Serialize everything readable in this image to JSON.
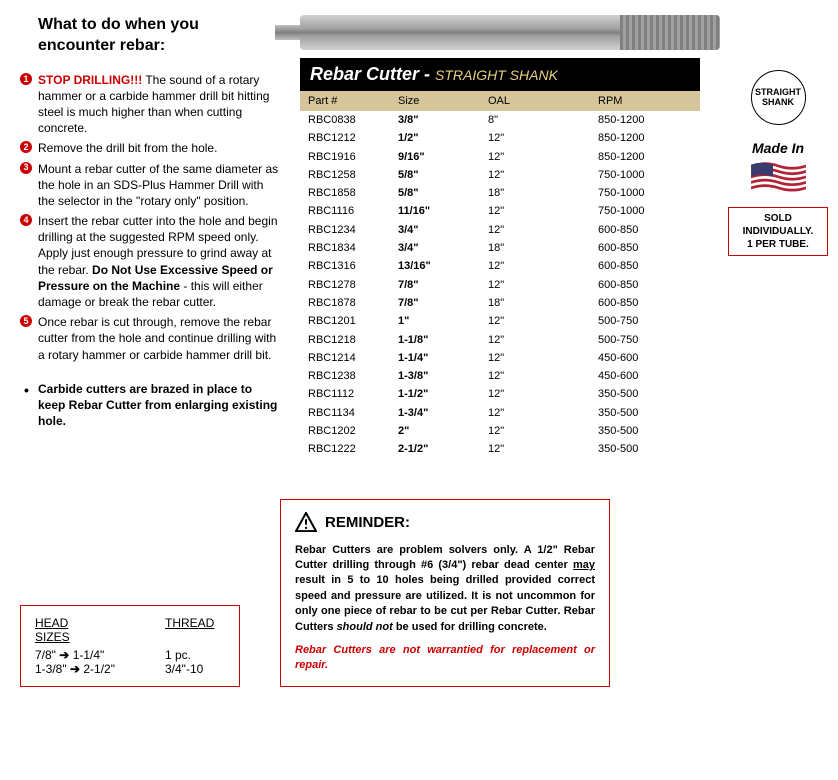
{
  "heading": "What to do when you encounter rebar:",
  "steps": [
    {
      "lead": "STOP DRILLING!!!",
      "rest": " The sound of a rotary hammer or a carbide hammer drill bit hitting steel is much higher than when cutting concrete."
    },
    {
      "lead": "",
      "rest": "Remove the drill bit from the hole."
    },
    {
      "lead": "",
      "rest": "Mount a rebar cutter of the same diameter as the hole in an SDS-Plus Hammer Drill with the selector in the \"rotary only\" position."
    },
    {
      "lead": "",
      "rest": "Insert the rebar cutter into the hole and begin drilling at the suggested RPM speed only. Apply just enough pressure to grind away at the rebar. ",
      "bold": "Do Not Use Excessive Speed or Pressure on the Machine",
      "tail": " - this will either damage or break the rebar cutter."
    },
    {
      "lead": "",
      "rest": "Once rebar is cut through, remove the rebar cutter from the hole and continue drilling with a rotary hammer or carbide hammer drill bit."
    }
  ],
  "bullet_note": "Carbide cutters are brazed in place to keep Rebar Cutter from enlarging existing hole.",
  "title_main": "Rebar Cutter - ",
  "title_sub": "STRAIGHT SHANK",
  "columns": [
    "Part #",
    "Size",
    "OAL",
    "RPM"
  ],
  "rows": [
    [
      "RBC0838",
      "3/8\"",
      "8\"",
      "850-1200"
    ],
    [
      "RBC1212",
      "1/2\"",
      "12\"",
      "850-1200"
    ],
    [
      "RBC1916",
      "9/16\"",
      "12\"",
      "850-1200"
    ],
    [
      "RBC1258",
      "5/8\"",
      "12\"",
      "750-1000"
    ],
    [
      "RBC1858",
      "5/8\"",
      "18\"",
      "750-1000"
    ],
    [
      "RBC1116",
      "11/16\"",
      "12\"",
      "750-1000"
    ],
    [
      "RBC1234",
      "3/4\"",
      "12\"",
      "600-850"
    ],
    [
      "RBC1834",
      "3/4\"",
      "18\"",
      "600-850"
    ],
    [
      "RBC1316",
      "13/16\"",
      "12\"",
      "600-850"
    ],
    [
      "RBC1278",
      "7/8\"",
      "12\"",
      "600-850"
    ],
    [
      "RBC1878",
      "7/8\"",
      "18\"",
      "600-850"
    ],
    [
      "RBC1201",
      "1\"",
      "12\"",
      "500-750"
    ],
    [
      "RBC1218",
      "1-1/8\"",
      "12\"",
      "500-750"
    ],
    [
      "RBC1214",
      "1-1/4\"",
      "12\"",
      "450-600"
    ],
    [
      "RBC1238",
      "1-3/8\"",
      "12\"",
      "450-600"
    ],
    [
      "RBC1112",
      "1-1/2\"",
      "12\"",
      "350-500"
    ],
    [
      "RBC1134",
      "1-3/4\"",
      "12\"",
      "350-500"
    ],
    [
      "RBC1202",
      "2\"",
      "12\"",
      "350-500"
    ],
    [
      "RBC1222",
      "2-1/2\"",
      "12\"",
      "350-500"
    ]
  ],
  "shank_badge_line1": "STRAIGHT",
  "shank_badge_line2": "SHANK",
  "made_in": "Made In",
  "sold_line1": "SOLD INDIVIDUALLY.",
  "sold_line2": "1 PER TUBE.",
  "head_sizes": {
    "hdr1_a": "HEAD",
    "hdr1_b": "SIZES",
    "hdr2": "THREAD",
    "row1_a": "7/8\"",
    "row1_b": "1-1/4\"",
    "row1_c": "1 pc.",
    "row2_a": "1-3/8\"",
    "row2_b": "2-1/2\"",
    "row2_c": "3/4\"-10"
  },
  "reminder": {
    "title": "REMINDER:",
    "body_a": "Rebar Cutters are problem solvers only. A 1/2\" Rebar Cutter drilling through #6 (3/4\") rebar dead center ",
    "body_may": "may",
    "body_b": " result in 5 to 10 holes being drilled provided correct speed and pressure are utilized. It is not uncommon for only one piece of rebar to be cut per Rebar Cutter. Rebar Cutters ",
    "body_should": "should not",
    "body_c": " be used for drilling concrete.",
    "warranty": "Rebar Cutters are not warrantied for replacement or repair."
  }
}
